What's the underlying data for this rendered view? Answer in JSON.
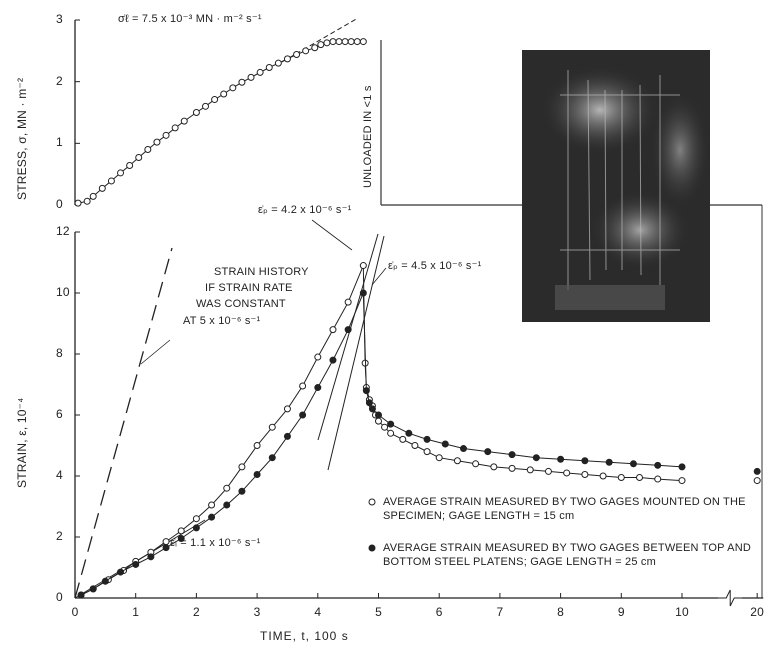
{
  "chart_data": [
    {
      "type": "line",
      "ylabel": "STRESS, σ, MN · m⁻²",
      "annotations": [
        "σ̇ℓ = 7.5 x 10⁻³ MN · m⁻² s⁻¹",
        "UNLOADED IN <1 s"
      ],
      "x": [
        0.05,
        0.2,
        0.3,
        0.45,
        0.6,
        0.75,
        0.9,
        1.05,
        1.2,
        1.35,
        1.5,
        1.65,
        1.8,
        2.0,
        2.15,
        2.3,
        2.45,
        2.6,
        2.75,
        2.9,
        3.05,
        3.2,
        3.35,
        3.5,
        3.65,
        3.8,
        3.95,
        4.05,
        4.15,
        4.25,
        4.35,
        4.45,
        4.55,
        4.65,
        4.75
      ],
      "values": [
        0.03,
        0.06,
        0.14,
        0.27,
        0.39,
        0.52,
        0.64,
        0.77,
        0.9,
        1.02,
        1.13,
        1.25,
        1.36,
        1.5,
        1.6,
        1.71,
        1.8,
        1.9,
        1.99,
        2.07,
        2.15,
        2.23,
        2.3,
        2.37,
        2.44,
        2.5,
        2.55,
        2.6,
        2.63,
        2.65,
        2.65,
        2.65,
        2.65,
        2.65,
        2.65
      ],
      "marker": "open",
      "color": "#222222",
      "xlim": [
        0,
        20.1
      ],
      "axis_break": [
        10.6,
        19.75
      ],
      "ylim": [
        0,
        3
      ],
      "yticks": [
        0,
        1,
        2,
        3
      ]
    },
    {
      "type": "line",
      "xlabel": "TIME, t, 100 s",
      "ylabel": "STRAIN, ε, 10⁻⁴",
      "annotations": [
        "ε̇ₚ = 4.2 x 10⁻⁶ s⁻¹",
        "ε̇ₚ = 4.5 x 10⁻⁶ s⁻¹",
        "ε̇ᵢ = 1.1 x 10⁻⁶ s⁻¹"
      ],
      "note": [
        "STRAIN HISTORY",
        "IF STRAIN RATE",
        "WAS CONSTANT",
        "AT 5 x 10⁻⁶ s⁻¹"
      ],
      "series": [
        {
          "name": "AVERAGE STRAIN MEASURED BY TWO GAGES MOUNTED ON THE SPECIMEN; GAGE LENGTH = 15 cm",
          "marker": "open",
          "color": "#222222",
          "x": [
            0.1,
            0.3,
            0.55,
            0.8,
            1.0,
            1.25,
            1.5,
            1.75,
            2.0,
            2.25,
            2.5,
            2.75,
            3.0,
            3.25,
            3.5,
            3.75,
            4.0,
            4.25,
            4.5,
            4.75,
            4.78,
            4.8,
            4.85,
            4.9,
            4.95,
            5.0,
            5.1,
            5.2,
            5.4,
            5.6,
            5.8,
            6.0,
            6.3,
            6.6,
            6.9,
            7.2,
            7.5,
            7.8,
            8.1,
            8.4,
            8.7,
            9.0,
            9.3,
            9.6,
            10.0,
            20
          ],
          "values": [
            0.1,
            0.3,
            0.6,
            0.9,
            1.2,
            1.5,
            1.85,
            2.2,
            2.6,
            3.05,
            3.6,
            4.3,
            5.0,
            5.6,
            6.2,
            6.95,
            7.9,
            8.8,
            9.7,
            10.9,
            7.7,
            6.9,
            6.5,
            6.3,
            6.0,
            5.8,
            5.6,
            5.4,
            5.2,
            5.0,
            4.8,
            4.6,
            4.5,
            4.4,
            4.3,
            4.25,
            4.2,
            4.15,
            4.1,
            4.05,
            4.0,
            3.95,
            3.95,
            3.9,
            3.85,
            3.85
          ]
        },
        {
          "name": "AVERAGE STRAIN MEASURED BY TWO GAGES BETWEEN TOP AND BOTTOM STEEL PLATENS; GAGE LENGTH = 25 cm",
          "marker": "filled",
          "color": "#222222",
          "x": [
            0.1,
            0.3,
            0.5,
            0.75,
            1.0,
            1.25,
            1.5,
            1.75,
            2.0,
            2.25,
            2.5,
            2.75,
            3.0,
            3.25,
            3.5,
            3.75,
            4.0,
            4.25,
            4.5,
            4.75,
            4.8,
            4.85,
            4.9,
            5.0,
            5.2,
            5.5,
            5.8,
            6.1,
            6.4,
            6.8,
            7.2,
            7.6,
            8.0,
            8.4,
            8.8,
            9.2,
            9.6,
            10.0,
            20
          ],
          "values": [
            0.1,
            0.3,
            0.55,
            0.85,
            1.1,
            1.35,
            1.65,
            1.95,
            2.3,
            2.65,
            3.05,
            3.5,
            4.05,
            4.6,
            5.3,
            6.0,
            6.9,
            7.8,
            8.8,
            10.0,
            6.8,
            6.4,
            6.2,
            6.0,
            5.7,
            5.4,
            5.2,
            5.05,
            4.9,
            4.8,
            4.7,
            4.6,
            4.55,
            4.5,
            4.45,
            4.4,
            4.35,
            4.3,
            4.15
          ]
        }
      ],
      "legend": "lower right",
      "xlim": [
        0,
        20.1
      ],
      "axis_break": [
        10.6,
        19.75
      ],
      "xticks": [
        0,
        1,
        2,
        3,
        4,
        5,
        6,
        7,
        8,
        9,
        10,
        20
      ],
      "ylim": [
        0,
        12
      ],
      "yticks": [
        0,
        2,
        4,
        6,
        8,
        10,
        12
      ]
    }
  ]
}
